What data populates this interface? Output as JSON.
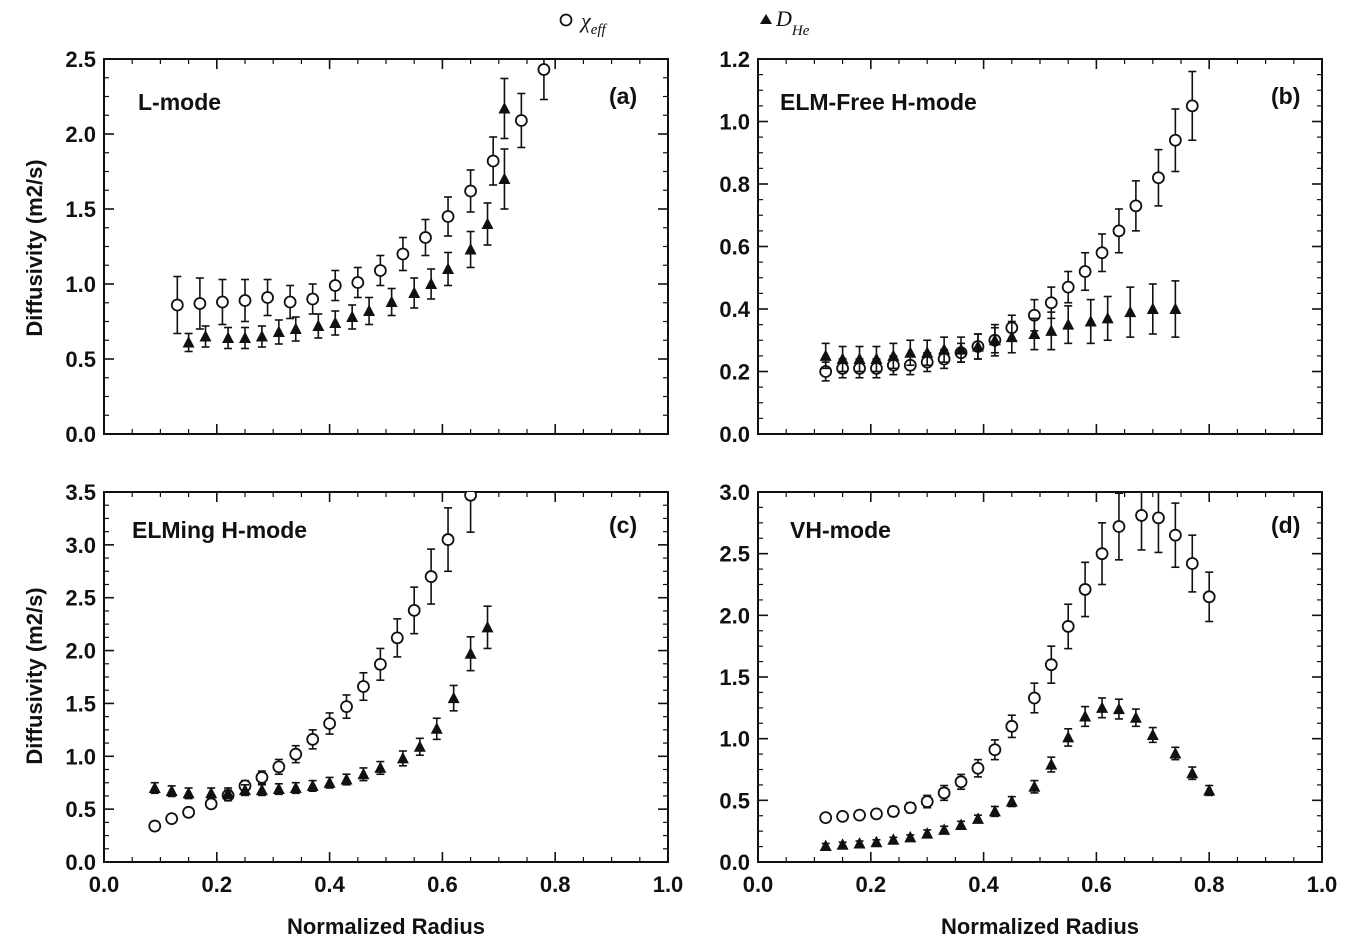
{
  "legend": {
    "chi_symbol": "χ",
    "chi_sub": "eff",
    "dhe_symbol": "D",
    "dhe_sub": "He"
  },
  "chart_data": [
    {
      "type": "scatter",
      "panel": "(a)",
      "title": "L-mode",
      "xlabel": "",
      "ylabel": "Diffusivity (m2/s)",
      "xlim": [
        0.0,
        1.0
      ],
      "ylim": [
        0.0,
        2.5
      ],
      "xticks": [
        "0.0",
        "0.2",
        "0.4",
        "0.6",
        "0.8",
        "1.0"
      ],
      "yticks": [
        "0.0",
        "0.5",
        "1.0",
        "1.5",
        "2.0",
        "2.5"
      ],
      "series": [
        {
          "marker": "circle",
          "x": [
            0.13,
            0.17,
            0.21,
            0.25,
            0.29,
            0.33,
            0.37,
            0.41,
            0.45,
            0.49,
            0.53,
            0.57,
            0.61,
            0.65,
            0.69,
            0.74,
            0.78
          ],
          "y": [
            0.86,
            0.87,
            0.88,
            0.89,
            0.91,
            0.88,
            0.9,
            0.99,
            1.01,
            1.09,
            1.2,
            1.31,
            1.45,
            1.62,
            1.82,
            2.09,
            2.43
          ],
          "err": [
            0.19,
            0.17,
            0.15,
            0.14,
            0.12,
            0.11,
            0.1,
            0.1,
            0.1,
            0.1,
            0.11,
            0.12,
            0.13,
            0.14,
            0.16,
            0.18,
            0.2
          ]
        },
        {
          "marker": "triangle",
          "x": [
            0.15,
            0.18,
            0.22,
            0.25,
            0.28,
            0.31,
            0.34,
            0.38,
            0.41,
            0.44,
            0.47,
            0.51,
            0.55,
            0.58,
            0.61,
            0.65,
            0.68,
            0.71
          ],
          "y": [
            0.61,
            0.65,
            0.64,
            0.64,
            0.65,
            0.68,
            0.7,
            0.72,
            0.74,
            0.78,
            0.82,
            0.88,
            0.94,
            1.0,
            1.1,
            1.23,
            1.4,
            1.7
          ],
          "err": [
            0.06,
            0.07,
            0.07,
            0.07,
            0.07,
            0.08,
            0.08,
            0.08,
            0.08,
            0.08,
            0.09,
            0.09,
            0.1,
            0.1,
            0.11,
            0.12,
            0.14,
            0.2
          ]
        },
        {
          "marker": "triangle",
          "x": [
            0.71
          ],
          "y": [
            2.17
          ],
          "err": [
            0.2
          ]
        }
      ]
    },
    {
      "type": "scatter",
      "panel": "(b)",
      "title": "ELM-Free H-mode",
      "xlabel": "",
      "ylabel": "",
      "xlim": [
        0.0,
        1.0
      ],
      "ylim": [
        0.0,
        1.2
      ],
      "xticks": [
        "0.0",
        "0.2",
        "0.4",
        "0.6",
        "0.8",
        "1.0"
      ],
      "yticks": [
        "0.0",
        "0.2",
        "0.4",
        "0.6",
        "0.8",
        "1.0",
        "1.2"
      ],
      "series": [
        {
          "marker": "circle",
          "x": [
            0.12,
            0.15,
            0.18,
            0.21,
            0.24,
            0.27,
            0.3,
            0.33,
            0.36,
            0.39,
            0.42,
            0.45,
            0.49,
            0.52,
            0.55,
            0.58,
            0.61,
            0.64,
            0.67,
            0.71,
            0.74,
            0.77
          ],
          "y": [
            0.2,
            0.21,
            0.21,
            0.21,
            0.22,
            0.22,
            0.23,
            0.24,
            0.26,
            0.28,
            0.3,
            0.34,
            0.38,
            0.42,
            0.47,
            0.52,
            0.58,
            0.65,
            0.73,
            0.82,
            0.94,
            1.05
          ],
          "err": [
            0.03,
            0.03,
            0.03,
            0.03,
            0.03,
            0.03,
            0.03,
            0.03,
            0.03,
            0.04,
            0.04,
            0.04,
            0.05,
            0.05,
            0.05,
            0.06,
            0.06,
            0.07,
            0.08,
            0.09,
            0.1,
            0.11
          ]
        },
        {
          "marker": "triangle",
          "x": [
            0.12,
            0.15,
            0.18,
            0.21,
            0.24,
            0.27,
            0.3,
            0.33,
            0.36,
            0.39,
            0.42,
            0.45,
            0.49,
            0.52,
            0.55,
            0.59,
            0.62,
            0.66,
            0.7,
            0.74
          ],
          "y": [
            0.25,
            0.24,
            0.24,
            0.24,
            0.25,
            0.26,
            0.26,
            0.27,
            0.27,
            0.28,
            0.3,
            0.31,
            0.32,
            0.33,
            0.35,
            0.36,
            0.37,
            0.39,
            0.4,
            0.4
          ],
          "err": [
            0.04,
            0.04,
            0.04,
            0.04,
            0.04,
            0.04,
            0.04,
            0.04,
            0.04,
            0.04,
            0.05,
            0.05,
            0.05,
            0.06,
            0.06,
            0.07,
            0.07,
            0.08,
            0.08,
            0.09
          ]
        }
      ]
    },
    {
      "type": "scatter",
      "panel": "(c)",
      "title": "ELMing H-mode",
      "xlabel": "Normalized Radius",
      "ylabel": "Diffusivity (m2/s)",
      "xlim": [
        0.0,
        1.0
      ],
      "ylim": [
        0.0,
        3.5
      ],
      "xticks": [
        "0.0",
        "0.2",
        "0.4",
        "0.6",
        "0.8",
        "1.0"
      ],
      "yticks": [
        "0.0",
        "0.5",
        "1.0",
        "1.5",
        "2.0",
        "2.5",
        "3.0",
        "3.5"
      ],
      "series": [
        {
          "marker": "circle",
          "x": [
            0.09,
            0.12,
            0.15,
            0.19,
            0.22,
            0.25,
            0.28,
            0.31,
            0.34,
            0.37,
            0.4,
            0.43,
            0.46,
            0.49,
            0.52,
            0.55,
            0.58,
            0.61,
            0.65
          ],
          "y": [
            0.34,
            0.41,
            0.47,
            0.55,
            0.63,
            0.72,
            0.8,
            0.9,
            1.02,
            1.16,
            1.31,
            1.47,
            1.66,
            1.87,
            2.12,
            2.38,
            2.7,
            3.05,
            3.47
          ],
          "err": [
            0.03,
            0.03,
            0.04,
            0.04,
            0.05,
            0.05,
            0.06,
            0.07,
            0.08,
            0.09,
            0.1,
            0.11,
            0.13,
            0.15,
            0.18,
            0.22,
            0.26,
            0.3,
            0.35
          ]
        },
        {
          "marker": "triangle",
          "x": [
            0.09,
            0.12,
            0.15,
            0.19,
            0.22,
            0.25,
            0.28,
            0.31,
            0.34,
            0.37,
            0.4,
            0.43,
            0.46,
            0.49,
            0.53,
            0.56,
            0.59,
            0.62,
            0.65,
            0.68
          ],
          "y": [
            0.7,
            0.67,
            0.65,
            0.65,
            0.65,
            0.68,
            0.68,
            0.69,
            0.7,
            0.72,
            0.75,
            0.78,
            0.83,
            0.89,
            0.98,
            1.09,
            1.26,
            1.55,
            1.97,
            2.22
          ],
          "err": [
            0.05,
            0.05,
            0.05,
            0.05,
            0.05,
            0.05,
            0.05,
            0.05,
            0.05,
            0.05,
            0.05,
            0.05,
            0.06,
            0.06,
            0.07,
            0.08,
            0.1,
            0.12,
            0.16,
            0.2
          ]
        }
      ]
    },
    {
      "type": "scatter",
      "panel": "(d)",
      "title": "VH-mode",
      "xlabel": "Normalized Radius",
      "ylabel": "",
      "xlim": [
        0.0,
        1.0
      ],
      "ylim": [
        0.0,
        3.0
      ],
      "xticks": [
        "0.0",
        "0.2",
        "0.4",
        "0.6",
        "0.8",
        "1.0"
      ],
      "yticks": [
        "0.0",
        "0.5",
        "1.0",
        "1.5",
        "2.0",
        "2.5",
        "3.0"
      ],
      "series": [
        {
          "marker": "circle",
          "x": [
            0.12,
            0.15,
            0.18,
            0.21,
            0.24,
            0.27,
            0.3,
            0.33,
            0.36,
            0.39,
            0.42,
            0.45,
            0.49,
            0.52,
            0.55,
            0.58,
            0.61,
            0.64,
            0.68,
            0.71,
            0.74,
            0.77,
            0.8
          ],
          "y": [
            0.36,
            0.37,
            0.38,
            0.39,
            0.41,
            0.44,
            0.49,
            0.56,
            0.65,
            0.76,
            0.91,
            1.1,
            1.33,
            1.6,
            1.91,
            2.21,
            2.5,
            2.72,
            2.81,
            2.79,
            2.65,
            2.42,
            2.15
          ],
          "err": [
            0.03,
            0.03,
            0.03,
            0.03,
            0.04,
            0.04,
            0.05,
            0.06,
            0.06,
            0.07,
            0.08,
            0.09,
            0.12,
            0.15,
            0.18,
            0.22,
            0.25,
            0.27,
            0.28,
            0.28,
            0.26,
            0.23,
            0.2
          ]
        },
        {
          "marker": "triangle",
          "x": [
            0.12,
            0.15,
            0.18,
            0.21,
            0.24,
            0.27,
            0.3,
            0.33,
            0.36,
            0.39,
            0.42,
            0.45,
            0.49,
            0.52,
            0.55,
            0.58,
            0.61,
            0.64,
            0.67,
            0.7,
            0.74,
            0.77,
            0.8
          ],
          "y": [
            0.13,
            0.14,
            0.15,
            0.16,
            0.18,
            0.2,
            0.23,
            0.26,
            0.3,
            0.35,
            0.41,
            0.49,
            0.61,
            0.79,
            1.01,
            1.18,
            1.25,
            1.24,
            1.17,
            1.03,
            0.88,
            0.72,
            0.58
          ],
          "err": [
            0.02,
            0.02,
            0.02,
            0.02,
            0.02,
            0.02,
            0.03,
            0.03,
            0.03,
            0.03,
            0.04,
            0.04,
            0.05,
            0.06,
            0.07,
            0.08,
            0.08,
            0.08,
            0.07,
            0.06,
            0.05,
            0.05,
            0.04
          ]
        }
      ]
    }
  ]
}
